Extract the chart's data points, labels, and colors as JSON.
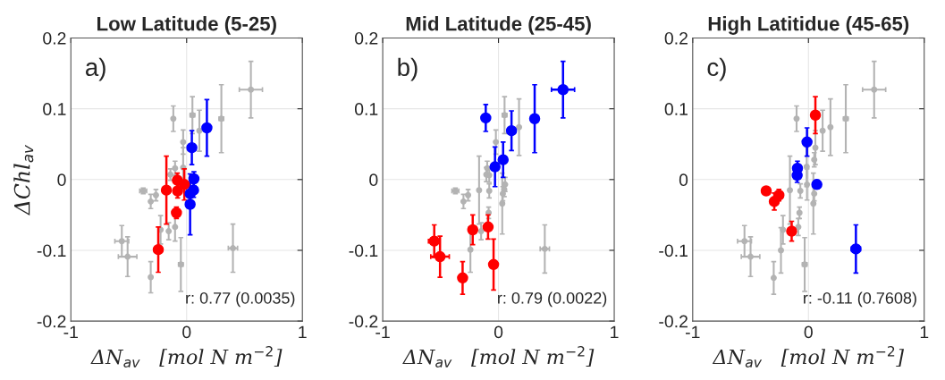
{
  "chart_data": [
    {
      "type": "scatter",
      "title": "Low Latitude (5-25)",
      "ylabel": "ΔChl$_{av}$",
      "xlabel": "ΔN$_{av}$   [mol N m$^{−2}$]",
      "xlim": [
        -1,
        1
      ],
      "xticks": [
        -1,
        0,
        1
      ],
      "ylim": [
        -0.2,
        0.2
      ],
      "yticks": [
        -0.2,
        -0.1,
        0,
        0.1,
        0.2
      ],
      "grid": true,
      "marker": "circle",
      "annotations": [
        "a)",
        "r: 0.77 (0.0035)"
      ],
      "series": [
        {
          "color": "#b3b3b3",
          "x": [
            0.555,
            0.3,
            0.05,
            -0.115,
            0.11,
            -0.03,
            -0.03,
            -0.1,
            -0.14,
            -0.375,
            -0.265,
            -0.31,
            -0.225,
            -0.155,
            -0.1,
            -0.56,
            -0.51,
            -0.31,
            -0.05,
            0.4
          ],
          "values": [
            0.127,
            0.086,
            0.091,
            0.086,
            0.069,
            0.053,
            0.017,
            0.016,
            0.007,
            -0.016,
            -0.022,
            -0.031,
            -0.071,
            -0.073,
            -0.067,
            -0.087,
            -0.109,
            -0.138,
            -0.12,
            -0.097
          ],
          "errors": [
            0.04,
            0.048,
            0.026,
            0.018,
            0.029,
            0.017,
            0.028,
            0.01,
            0.008,
            0.004,
            0.008,
            0.01,
            0.02,
            0.012,
            0.02,
            0.022,
            0.028,
            0.022,
            0.038,
            0.034
          ],
          "xerrors": [
            0.1,
            0.02,
            0.02,
            null,
            null,
            null,
            null,
            null,
            null,
            0.03,
            null,
            null,
            null,
            null,
            null,
            0.06,
            0.08,
            null,
            0.02,
            0.04
          ]
        },
        {
          "color": "#ff0000",
          "x": [
            -0.245,
            -0.175,
            -0.08,
            -0.078,
            -0.02,
            -0.088
          ],
          "values": [
            -0.099,
            -0.015,
            -0.001,
            -0.016,
            -0.007,
            -0.047
          ],
          "errors": [
            0.032,
            0.048,
            0.01,
            0.01,
            0.022,
            0.008
          ]
        },
        {
          "color": "#0000ff",
          "x": [
            0.175,
            0.045,
            0.063,
            0.06,
            0.03,
            0.03
          ],
          "values": [
            0.073,
            0.045,
            0.001,
            -0.015,
            -0.02,
            -0.035
          ],
          "errors": [
            0.04,
            0.024,
            0.01,
            0.01,
            0.01,
            0.043
          ]
        }
      ]
    },
    {
      "type": "scatter",
      "title": "Mid Latitude (25-45)",
      "xlabel": "ΔN$_{av}$   [mol N m$^{−2}$]",
      "xlim": [
        -1,
        1
      ],
      "xticks": [
        -1,
        0,
        1
      ],
      "ylim": [
        -0.2,
        0.2
      ],
      "yticks": [
        -0.2,
        -0.1,
        0,
        0.1,
        0.2
      ],
      "grid": true,
      "marker": "circle",
      "annotations": [
        "b)",
        "r: 0.79 (0.0022)"
      ],
      "series": [
        {
          "color": "#b3b3b3",
          "x": [
            0.0525,
            0.1775,
            -0.0225,
            -0.0975,
            -0.105,
            -0.08,
            -0.3725,
            -0.2625,
            -0.3025,
            -0.1675,
            -0.08,
            0.0575,
            0.05,
            0.0375,
            0.0325,
            -0.085,
            -0.15,
            -0.2425,
            0.4
          ],
          "values": [
            0.091,
            0.074,
            0.053,
            0.016,
            0.007,
            0.006,
            -0.016,
            -0.022,
            -0.031,
            -0.015,
            -0.016,
            -0.007,
            -0.014,
            -0.02,
            -0.034,
            -0.047,
            -0.073,
            -0.099,
            -0.098
          ],
          "errors": [
            0.026,
            0.04,
            0.017,
            0.01,
            0.01,
            0.01,
            0.004,
            0.008,
            0.01,
            0.048,
            0.01,
            0.01,
            0.01,
            0.01,
            0.043,
            0.008,
            0.012,
            0.032,
            0.034
          ],
          "xerrors": [
            0.02,
            null,
            null,
            null,
            null,
            null,
            0.03,
            null,
            null,
            null,
            null,
            null,
            null,
            null,
            null,
            null,
            null,
            null,
            0.04
          ]
        },
        {
          "color": "#ff0000",
          "x": [
            -0.555,
            -0.505,
            -0.31,
            -0.2225,
            -0.09,
            -0.0425
          ],
          "values": [
            -0.087,
            -0.109,
            -0.139,
            -0.071,
            -0.067,
            -0.12
          ],
          "errors": [
            0.023,
            0.029,
            0.023,
            0.021,
            0.017,
            0.036
          ],
          "xerrors": [
            0.05,
            0.08,
            null,
            null,
            null,
            null
          ]
        },
        {
          "color": "#0000ff",
          "x": [
            -0.11,
            0.1125,
            0.3125,
            0.5575,
            -0.03,
            0.04
          ],
          "values": [
            0.087,
            0.069,
            0.086,
            0.127,
            0.018,
            0.028
          ],
          "errors": [
            0.019,
            0.028,
            0.048,
            0.04,
            0.028,
            0.025
          ],
          "xerrors": [
            null,
            null,
            null,
            0.1,
            null,
            null
          ]
        }
      ]
    },
    {
      "type": "scatter",
      "title": "High Latitidue (45-65)",
      "xlabel": "ΔN$_{av}$   [mol N m$^{−2}$]",
      "xlim": [
        -1,
        1
      ],
      "xticks": [
        -1,
        0,
        1
      ],
      "ylim": [
        -0.2,
        0.2
      ],
      "yticks": [
        -0.2,
        -0.1,
        0,
        0.1,
        0.2
      ],
      "grid": true,
      "marker": "circle",
      "annotations": [
        "c)",
        "r: -0.11 (0.7608)"
      ],
      "series": [
        {
          "color": "#b3b3b3",
          "x": [
            0.5675,
            0.3225,
            0.19,
            0.1225,
            -0.1025,
            0.06,
            0.05,
            -0.015,
            -0.0125,
            -0.07,
            -0.16,
            0.05,
            0.0425,
            -0.0775,
            -0.0875,
            -0.22,
            -0.2375,
            -0.0325,
            -0.3,
            -0.5525,
            -0.5
          ],
          "values": [
            0.127,
            0.086,
            0.074,
            0.069,
            0.086,
            0.045,
            0.028,
            0.018,
            -0.007,
            -0.016,
            -0.015,
            -0.02,
            -0.034,
            -0.047,
            -0.067,
            -0.071,
            -0.1,
            -0.12,
            -0.139,
            -0.087,
            -0.109
          ],
          "errors": [
            0.04,
            0.048,
            0.04,
            0.029,
            0.018,
            0.024,
            0.01,
            0.028,
            0.022,
            0.01,
            0.048,
            0.01,
            0.043,
            0.008,
            0.012,
            0.02,
            0.032,
            0.038,
            0.023,
            0.022,
            0.028
          ],
          "xerrors": [
            0.1,
            0.02,
            null,
            null,
            null,
            null,
            null,
            null,
            null,
            null,
            null,
            null,
            null,
            null,
            null,
            null,
            null,
            0.02,
            null,
            0.06,
            0.08
          ]
        },
        {
          "color": "#ff0000",
          "x": [
            0.06,
            -0.365,
            -0.255,
            -0.295,
            -0.145
          ],
          "values": [
            0.091,
            -0.016,
            -0.022,
            -0.031,
            -0.073
          ],
          "errors": [
            0.026,
            0.006,
            0.008,
            0.012,
            0.014
          ],
          "xerrors": [
            0.03,
            0.03,
            null,
            null,
            null
          ]
        },
        {
          "color": "#0000ff",
          "x": [
            -0.0125,
            -0.095,
            -0.0975,
            0.0725,
            0.41
          ],
          "values": [
            0.053,
            0.016,
            0.006,
            -0.007,
            -0.098
          ],
          "errors": [
            0.02,
            0.01,
            0.01,
            0.006,
            0.034
          ],
          "xerrors": [
            null,
            null,
            null,
            null,
            0.04
          ]
        }
      ]
    }
  ]
}
